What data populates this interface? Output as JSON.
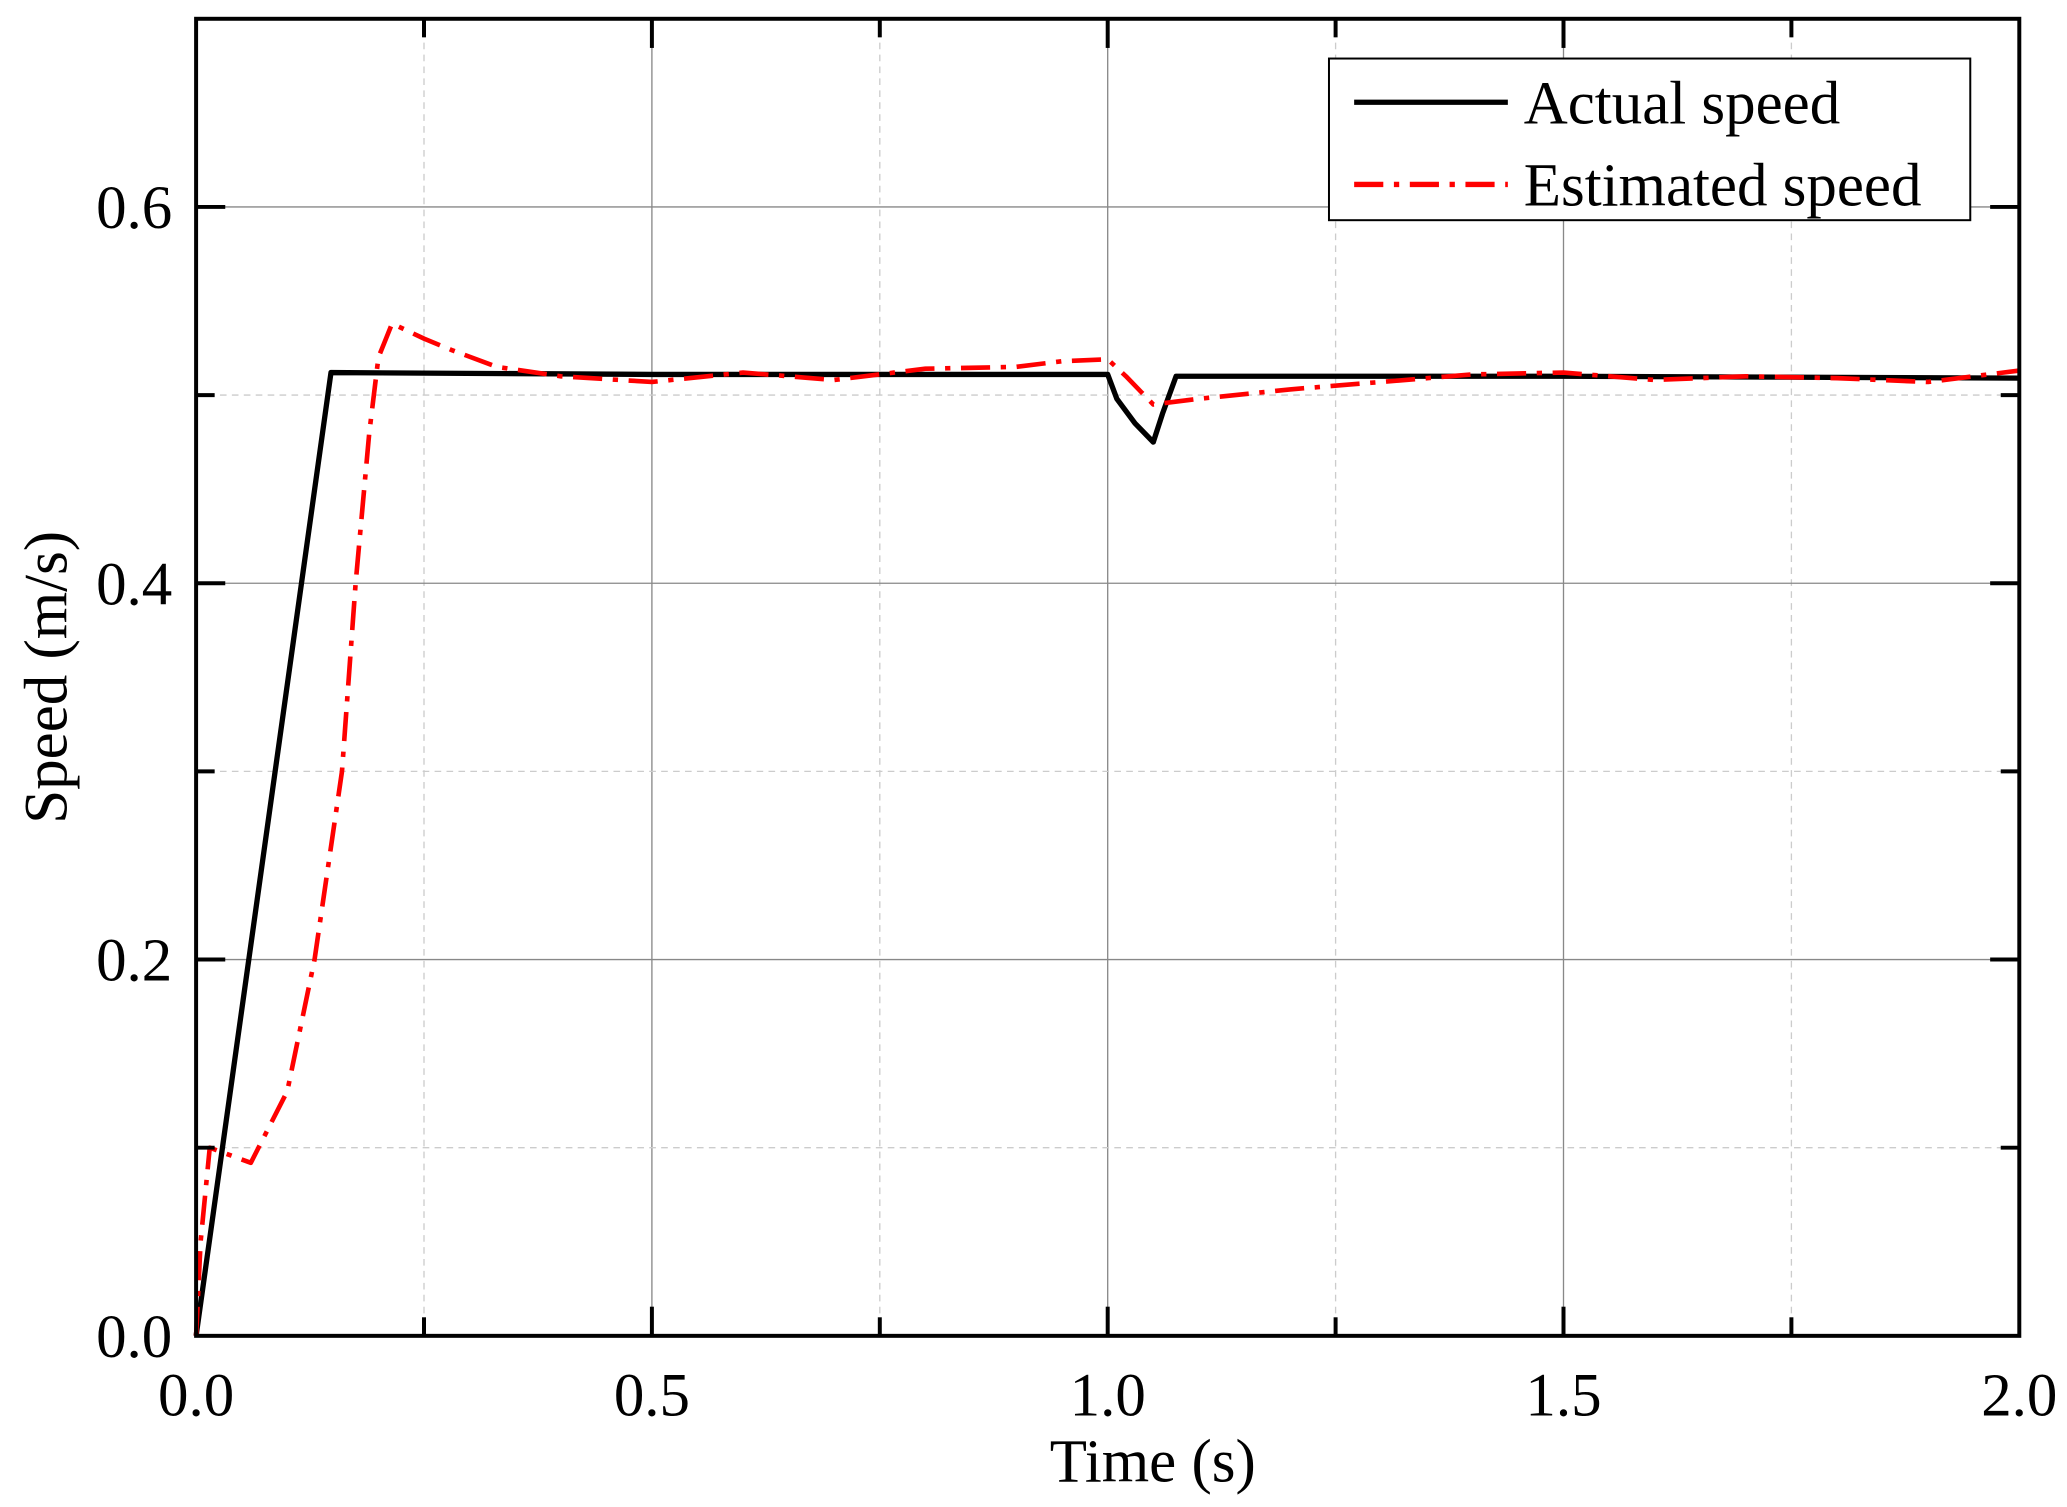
{
  "chart_data": {
    "type": "line",
    "title": "",
    "xlabel": "Time (s)",
    "ylabel": "Speed (m/s)",
    "xlim": [
      0,
      2.0
    ],
    "ylim": [
      0,
      0.7
    ],
    "xticks": [
      0.0,
      0.5,
      1.0,
      1.5,
      2.0
    ],
    "xtick_labels": [
      "0.0",
      "0.5",
      "1.0",
      "1.5",
      "2.0"
    ],
    "yticks": [
      0.0,
      0.2,
      0.4,
      0.6
    ],
    "ytick_labels": [
      "0.0",
      "0.2",
      "0.4",
      "0.6"
    ],
    "grid": true,
    "legend_position": "top-right",
    "series": [
      {
        "name": "Actual speed",
        "color": "#000000",
        "style": "solid",
        "x": [
          0,
          0.148,
          0.5,
          1.0,
          1.01,
          1.03,
          1.05,
          1.06,
          1.075,
          1.5,
          2.0
        ],
        "y": [
          0,
          0.512,
          0.511,
          0.511,
          0.498,
          0.485,
          0.475,
          0.49,
          0.51,
          0.51,
          0.509
        ]
      },
      {
        "name": "Estimated speed",
        "color": "#ff0000",
        "style": "dash-dot",
        "x": [
          0,
          0.005,
          0.015,
          0.06,
          0.1,
          0.13,
          0.16,
          0.175,
          0.19,
          0.2,
          0.215,
          0.25,
          0.28,
          0.33,
          0.4,
          0.5,
          0.6,
          0.7,
          0.8,
          0.9,
          0.95,
          1.0,
          1.02,
          1.05,
          1.1,
          1.2,
          1.3,
          1.4,
          1.5,
          1.6,
          1.7,
          1.8,
          1.9,
          2.0
        ],
        "y": [
          0,
          0.05,
          0.1,
          0.092,
          0.13,
          0.2,
          0.3,
          0.4,
          0.48,
          0.52,
          0.538,
          0.53,
          0.524,
          0.515,
          0.51,
          0.507,
          0.512,
          0.508,
          0.514,
          0.515,
          0.518,
          0.519,
          0.51,
          0.495,
          0.498,
          0.503,
          0.507,
          0.511,
          0.512,
          0.508,
          0.51,
          0.509,
          0.507,
          0.513
        ]
      }
    ]
  }
}
